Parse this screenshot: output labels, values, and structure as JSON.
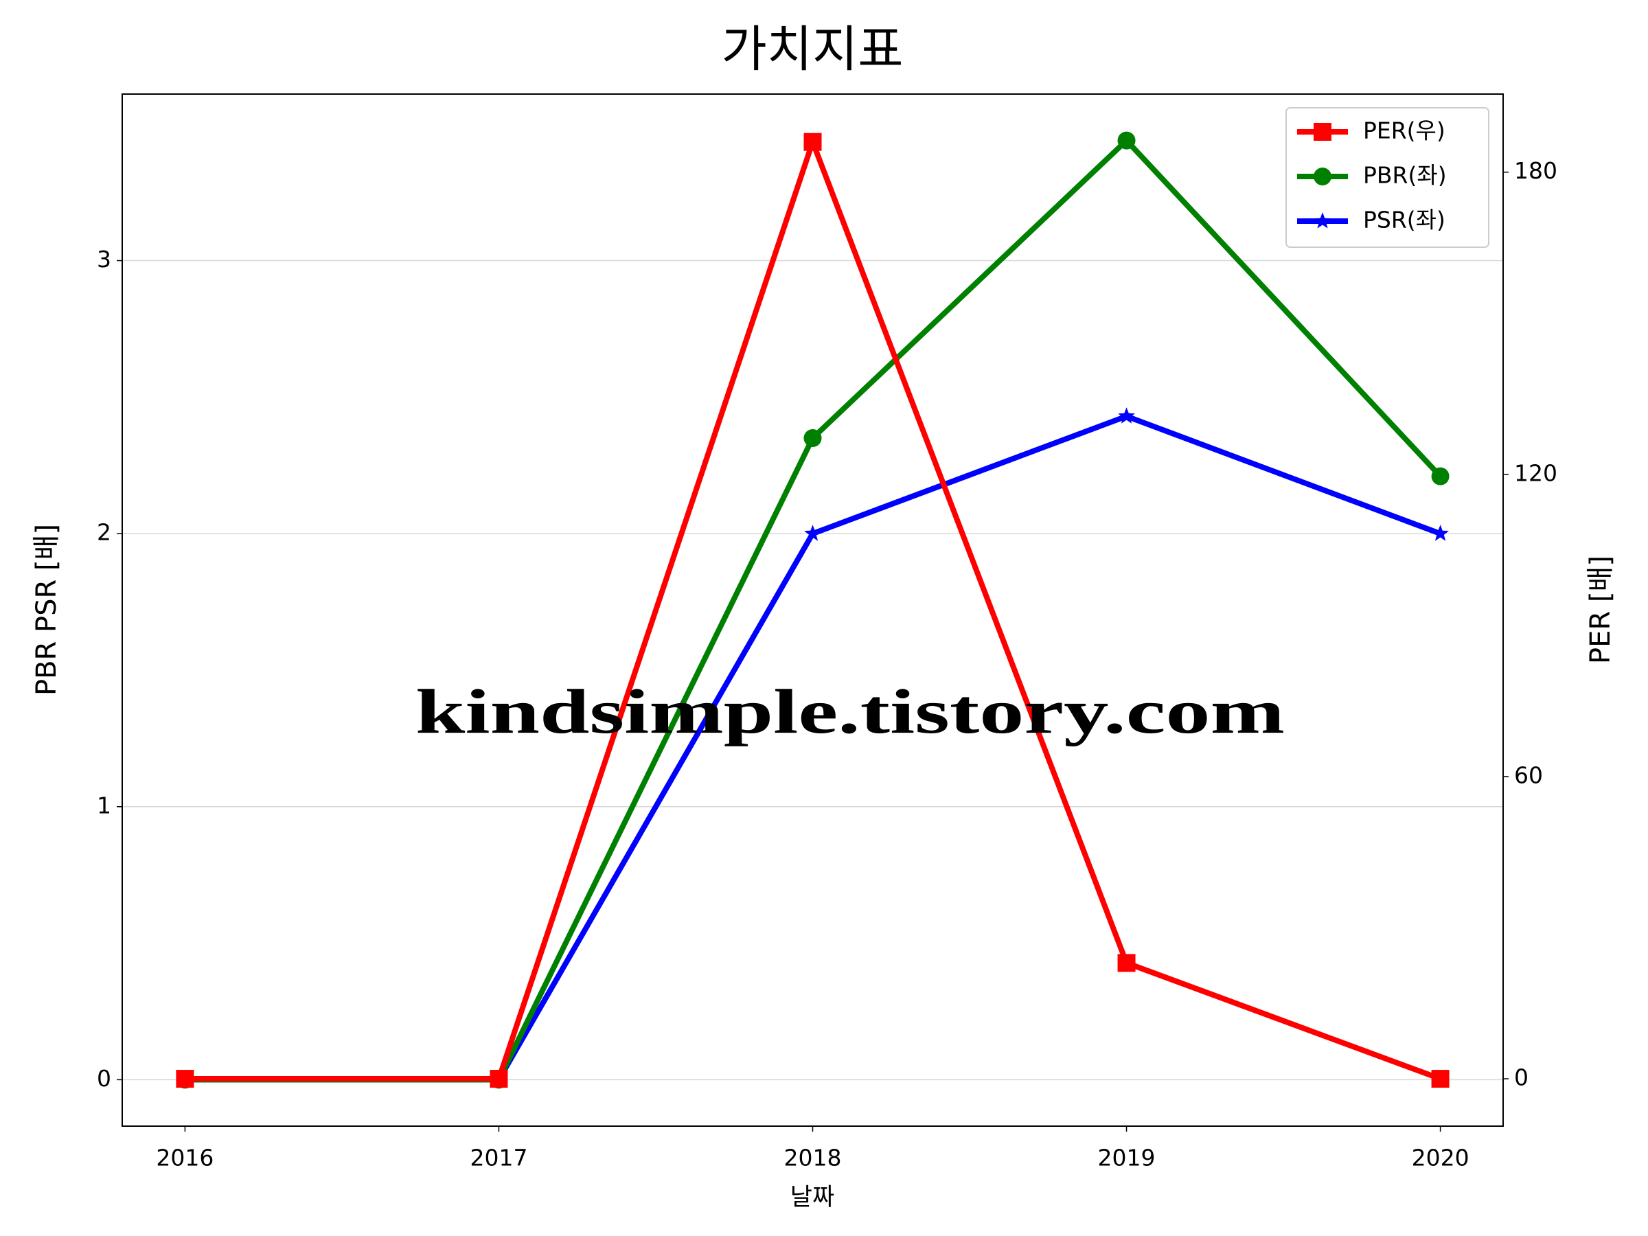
{
  "chart_data": {
    "type": "line",
    "title": "가치지표",
    "xlabel": "날짜",
    "ylabel": "PBR PSR [배]",
    "ylabel_color": "#008000",
    "y2label": "PER [배]",
    "y2label_color": "#ff0000",
    "watermark": "kindsimple.tistory.com",
    "x": [
      2016,
      2017,
      2018,
      2019,
      2020
    ],
    "xlim": [
      2015.8,
      2020.2
    ],
    "xticks": [
      2016,
      2017,
      2018,
      2019,
      2020
    ],
    "ylim": [
      -0.17,
      3.61
    ],
    "yticks": [
      0,
      1,
      2,
      3
    ],
    "y2lim": [
      -9.4,
      195.5
    ],
    "y2ticks": [
      0,
      60,
      120,
      180
    ],
    "grid": true,
    "legend": "upper right",
    "series": [
      {
        "name": "PER(우)",
        "color": "#ff0000",
        "marker": "square",
        "axis": "y2",
        "values": [
          0,
          0,
          186,
          23,
          0
        ]
      },
      {
        "name": "PBR(좌)",
        "color": "#008000",
        "marker": "circle",
        "values": [
          0,
          0,
          2.35,
          3.44,
          2.21
        ]
      },
      {
        "name": "PSR(좌)",
        "color": "#0000ff",
        "marker": "star",
        "values": [
          0,
          0,
          2.0,
          2.43,
          2.0
        ]
      }
    ]
  }
}
